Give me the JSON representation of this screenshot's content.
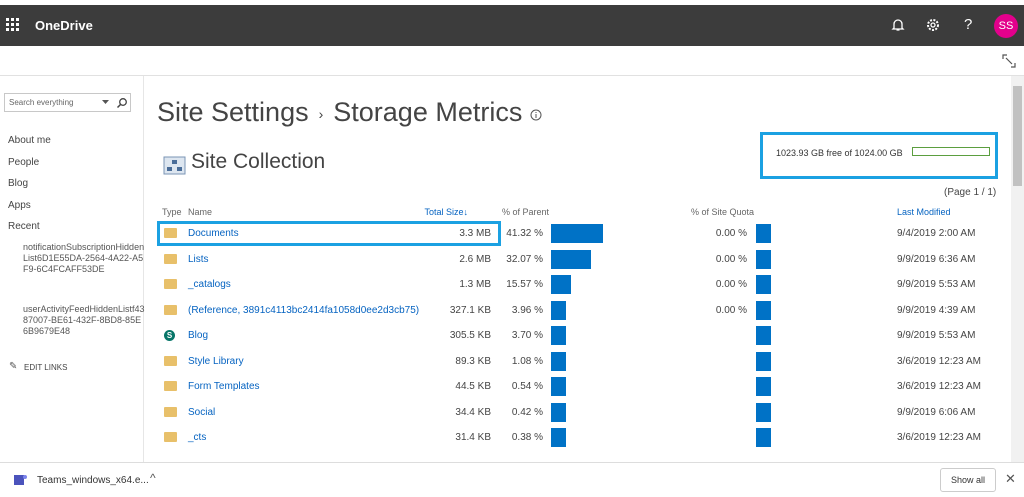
{
  "suite_bar": {
    "app": "OneDrive",
    "avatar": "SS"
  },
  "search": {
    "placeholder": "Search everything"
  },
  "nav": {
    "links": [
      "About me",
      "People",
      "Blog",
      "Apps",
      "Recent"
    ],
    "recent": [
      "notificationSubscriptionHiddenList6D1E55DA-2564-4A22-A5F9-6C4FCAFF53DE",
      "userActivityFeedHiddenListf4387007-BE61-432F-8BD8-85E6B9679E48"
    ],
    "edit": "EDIT LINKS"
  },
  "header": {
    "crumb": "Site Settings",
    "title": "Storage Metrics",
    "section": "Site Collection"
  },
  "quota": "1023.93 GB free of 1024.00 GB",
  "paging": "(Page 1 / 1)",
  "table": {
    "columns": [
      "Type",
      "Name",
      "Total Size↓",
      "% of Parent",
      "% of Site Quota",
      "Last Modified"
    ],
    "rows": [
      {
        "icon": "folder",
        "name": "Documents",
        "size": "3.3 MB",
        "parent": "41.32 %",
        "quota": "0.00 %",
        "modified": "9/4/2019 2:00 AM"
      },
      {
        "icon": "folder",
        "name": "Lists",
        "size": "2.6 MB",
        "parent": "32.07 %",
        "quota": "0.00 %",
        "modified": "9/9/2019 6:36 AM"
      },
      {
        "icon": "folder",
        "name": "_catalogs",
        "size": "1.3 MB",
        "parent": "15.57 %",
        "quota": "0.00 %",
        "modified": "9/9/2019 5:53 AM"
      },
      {
        "icon": "folder",
        "name": "(Reference, 3891c4113bc2414fa1058d0ee2d3cb75)",
        "size": "327.1 KB",
        "parent": "3.96 %",
        "quota": "0.00 %",
        "modified": "9/9/2019 4:39 AM"
      },
      {
        "icon": "site",
        "name": "Blog",
        "size": "305.5 KB",
        "parent": "3.70 %",
        "quota": null,
        "modified": "9/9/2019 5:53 AM"
      },
      {
        "icon": "folder",
        "name": "Style Library",
        "size": "89.3 KB",
        "parent": "1.08 %",
        "quota": null,
        "modified": "3/6/2019 12:23 AM"
      },
      {
        "icon": "folder",
        "name": "Form Templates",
        "size": "44.5 KB",
        "parent": "0.54 %",
        "quota": null,
        "modified": "3/6/2019 12:23 AM"
      },
      {
        "icon": "folder",
        "name": "Social",
        "size": "34.4 KB",
        "parent": "0.42 %",
        "quota": null,
        "modified": "9/9/2019 6:06 AM"
      },
      {
        "icon": "folder",
        "name": "_cts",
        "size": "31.4 KB",
        "parent": "0.38 %",
        "quota": null,
        "modified": "3/6/2019 12:23 AM"
      }
    ]
  },
  "download": {
    "file": "Teams_windows_x64.e...",
    "show_all": "Show all"
  }
}
